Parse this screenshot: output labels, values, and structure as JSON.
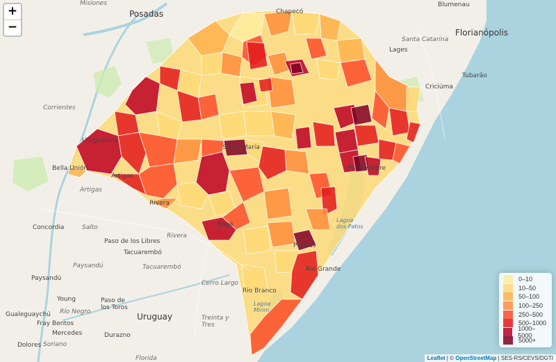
{
  "zoom": {
    "in_label": "+",
    "out_label": "−"
  },
  "legend": {
    "items": [
      {
        "label": "0–10",
        "color": "#ffeda0"
      },
      {
        "label": "10–50",
        "color": "#fed976"
      },
      {
        "label": "50–100",
        "color": "#feb24c"
      },
      {
        "label": "100–250",
        "color": "#fd8d3c"
      },
      {
        "label": "250–500",
        "color": "#fc4e2a"
      },
      {
        "label": "500–1000",
        "color": "#e31a1c"
      },
      {
        "label": "1000–5000",
        "color": "#bd0026"
      },
      {
        "label": "5000+",
        "color": "#800026"
      }
    ]
  },
  "attribution": {
    "leaflet": "Leaflet",
    "sep1": " | © ",
    "osm": "OpenStreetMap",
    "sep2": " | SES-RS/CEVS/DGTI"
  },
  "places": {
    "misiones": "Misiones",
    "posadas": "Posadas",
    "chapeco": "Chapecó",
    "blumenau": "Blumenau",
    "florianopolis": "Florianópolis",
    "santa_catarina": "Santa Catarina",
    "lages": "Lages",
    "tubarao": "Tubarão",
    "criciuma": "Criciúma",
    "corrientes": "Corrientes",
    "uruguaiana": "Uruguaiana",
    "bella_union": "Bella Unión",
    "artigas": "Artigas",
    "santa_maria": "Santa Maria",
    "porto_alegre": "Porto Alegre",
    "concordia": "Concordia",
    "salto": "Salto",
    "rivera": "Rivera",
    "bage": "Bagé",
    "lagoa_dos_patos": "Lagoa dos Patos",
    "pelotas": "Pelotas",
    "paso_de_los_libres": "Paso de los Libres",
    "tacuarembo": "Tacuarembó",
    "tacuarembo_dept": "Tacuarembó",
    "paysandu_dept": "Paysandú",
    "paysandu": "Paysandú",
    "cerro_largo": "Cerro Largo",
    "rio_grande": "Rio Grande",
    "rio_branco": "Rio Branco",
    "lagoa_mirim": "Lagoa Mirim",
    "young": "Young",
    "paso_de_los_toros": "Paso de los Toros",
    "rio_negro": "Río Negro",
    "uruguay": "Uruguay",
    "treinta_y_tres": "Treinta y Tres",
    "gualeguaychu": "Gualeguaychú",
    "fray_bentos": "Fray Bentos",
    "mercedes": "Mercedes",
    "durazno": "Durazno",
    "dolores": "Dolores",
    "soriano": "Soriano",
    "florida": "Florida"
  }
}
